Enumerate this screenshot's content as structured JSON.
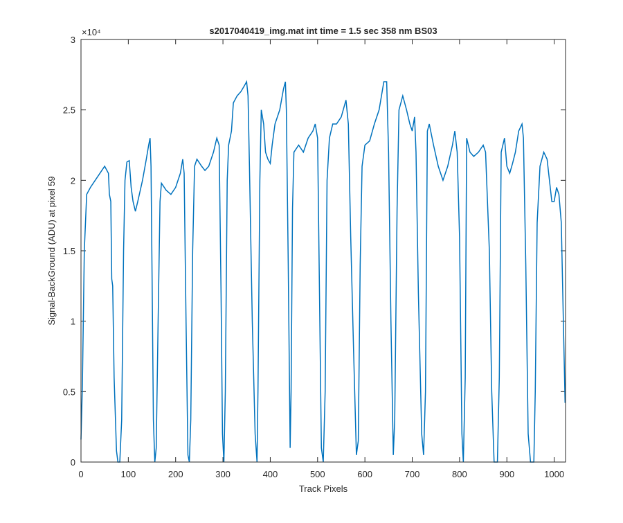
{
  "chart_data": {
    "type": "line",
    "title": "s2017040419_img.mat int time = 1.5 sec  358 nm BS03",
    "x_label": "Track Pixels",
    "y_label": "Signal-BackGround (ADU) at pixel 59",
    "y_exponent": "×10⁴",
    "xlim": [
      0,
      1024
    ],
    "ylim": [
      0,
      30000
    ],
    "xticks": [
      0,
      100,
      200,
      300,
      400,
      500,
      600,
      700,
      800,
      900,
      1000
    ],
    "yticks": [
      0,
      {
        "value": 5000,
        "label": "0.5"
      },
      {
        "value": 10000,
        "label": "1"
      },
      {
        "value": 15000,
        "label": "1.5"
      },
      {
        "value": 20000,
        "label": "2"
      },
      {
        "value": 25000,
        "label": "2.5"
      },
      {
        "value": 30000,
        "label": "3"
      }
    ],
    "x": [
      0,
      3,
      7,
      12,
      20,
      30,
      40,
      50,
      58,
      60,
      63,
      65,
      67,
      70,
      75,
      78,
      82,
      86,
      90,
      93,
      97,
      102,
      106,
      110,
      115,
      120,
      130,
      138,
      143,
      146,
      148,
      150,
      153,
      156,
      159,
      163,
      167,
      170,
      180,
      190,
      200,
      210,
      215,
      218,
      222,
      226,
      229,
      232,
      236,
      240,
      245,
      255,
      262,
      270,
      280,
      287,
      292,
      296,
      299,
      302,
      305,
      309,
      312,
      318,
      322,
      330,
      338,
      345,
      350,
      353,
      356,
      362,
      368,
      372,
      374,
      378,
      381,
      386,
      390,
      395,
      400,
      404,
      410,
      420,
      428,
      432,
      434,
      438,
      442,
      444,
      447,
      450,
      460,
      470,
      480,
      490,
      495,
      500,
      504,
      508,
      512,
      516,
      520,
      525,
      532,
      540,
      550,
      560,
      565,
      570,
      576,
      582,
      586,
      590,
      594,
      600,
      610,
      620,
      630,
      640,
      646,
      650,
      655,
      660,
      663,
      668,
      672,
      680,
      688,
      695,
      700,
      705,
      708,
      713,
      720,
      724,
      728,
      732,
      736,
      745,
      755,
      765,
      775,
      785,
      790,
      795,
      800,
      805,
      808,
      812,
      815,
      822,
      830,
      840,
      850,
      855,
      863,
      868,
      873,
      880,
      884,
      888,
      895,
      900,
      906,
      912,
      918,
      925,
      932,
      935,
      940,
      945,
      950,
      957,
      960,
      964,
      970,
      978,
      985,
      990,
      995,
      1000,
      1005,
      1010,
      1015,
      1020,
      1023
    ],
    "series": [
      {
        "color": "#0072bd",
        "values": [
          1600,
          5500,
          15000,
          19000,
          19500,
          20000,
          20500,
          21000,
          20500,
          19000,
          18500,
          13000,
          12500,
          6000,
          800,
          0,
          0,
          3000,
          15000,
          20000,
          21300,
          21400,
          19500,
          18500,
          17800,
          18500,
          20000,
          21500,
          22500,
          23000,
          21000,
          14000,
          3000,
          0,
          1000,
          10000,
          18500,
          19800,
          19300,
          19000,
          19500,
          20500,
          21500,
          20500,
          10000,
          500,
          0,
          3000,
          15000,
          21000,
          21500,
          21000,
          20700,
          21000,
          22000,
          23000,
          22500,
          12000,
          2000,
          0,
          5000,
          20000,
          22500,
          23500,
          25500,
          26000,
          26300,
          26700,
          27000,
          26000,
          21000,
          10000,
          2000,
          0,
          5000,
          20000,
          25000,
          24000,
          22000,
          21500,
          21200,
          22500,
          24000,
          25000,
          26500,
          27000,
          25000,
          14000,
          1000,
          5000,
          18000,
          22000,
          22500,
          22000,
          23000,
          23500,
          24000,
          23000,
          12000,
          1000,
          0,
          5000,
          20000,
          23000,
          24000,
          24000,
          24500,
          25700,
          24000,
          16000,
          8000,
          500,
          1500,
          14000,
          21000,
          22500,
          22800,
          24000,
          25000,
          27000,
          27000,
          22000,
          10000,
          500,
          3000,
          18000,
          25000,
          26000,
          25000,
          24000,
          23500,
          24500,
          22000,
          12000,
          2000,
          500,
          5000,
          23500,
          24000,
          22500,
          21000,
          20000,
          21000,
          22500,
          23500,
          22000,
          16000,
          2000,
          0,
          6000,
          23000,
          22000,
          21700,
          22000,
          22500,
          22000,
          15000,
          5000,
          0,
          0,
          6000,
          22000,
          23000,
          21000,
          20500,
          21200,
          22000,
          23500,
          24000,
          23000,
          14000,
          2000,
          0,
          0,
          5000,
          17000,
          21000,
          22000,
          21500,
          20000,
          18500,
          18500,
          19500,
          19000,
          17000,
          9000,
          4200
        ]
      }
    ]
  }
}
